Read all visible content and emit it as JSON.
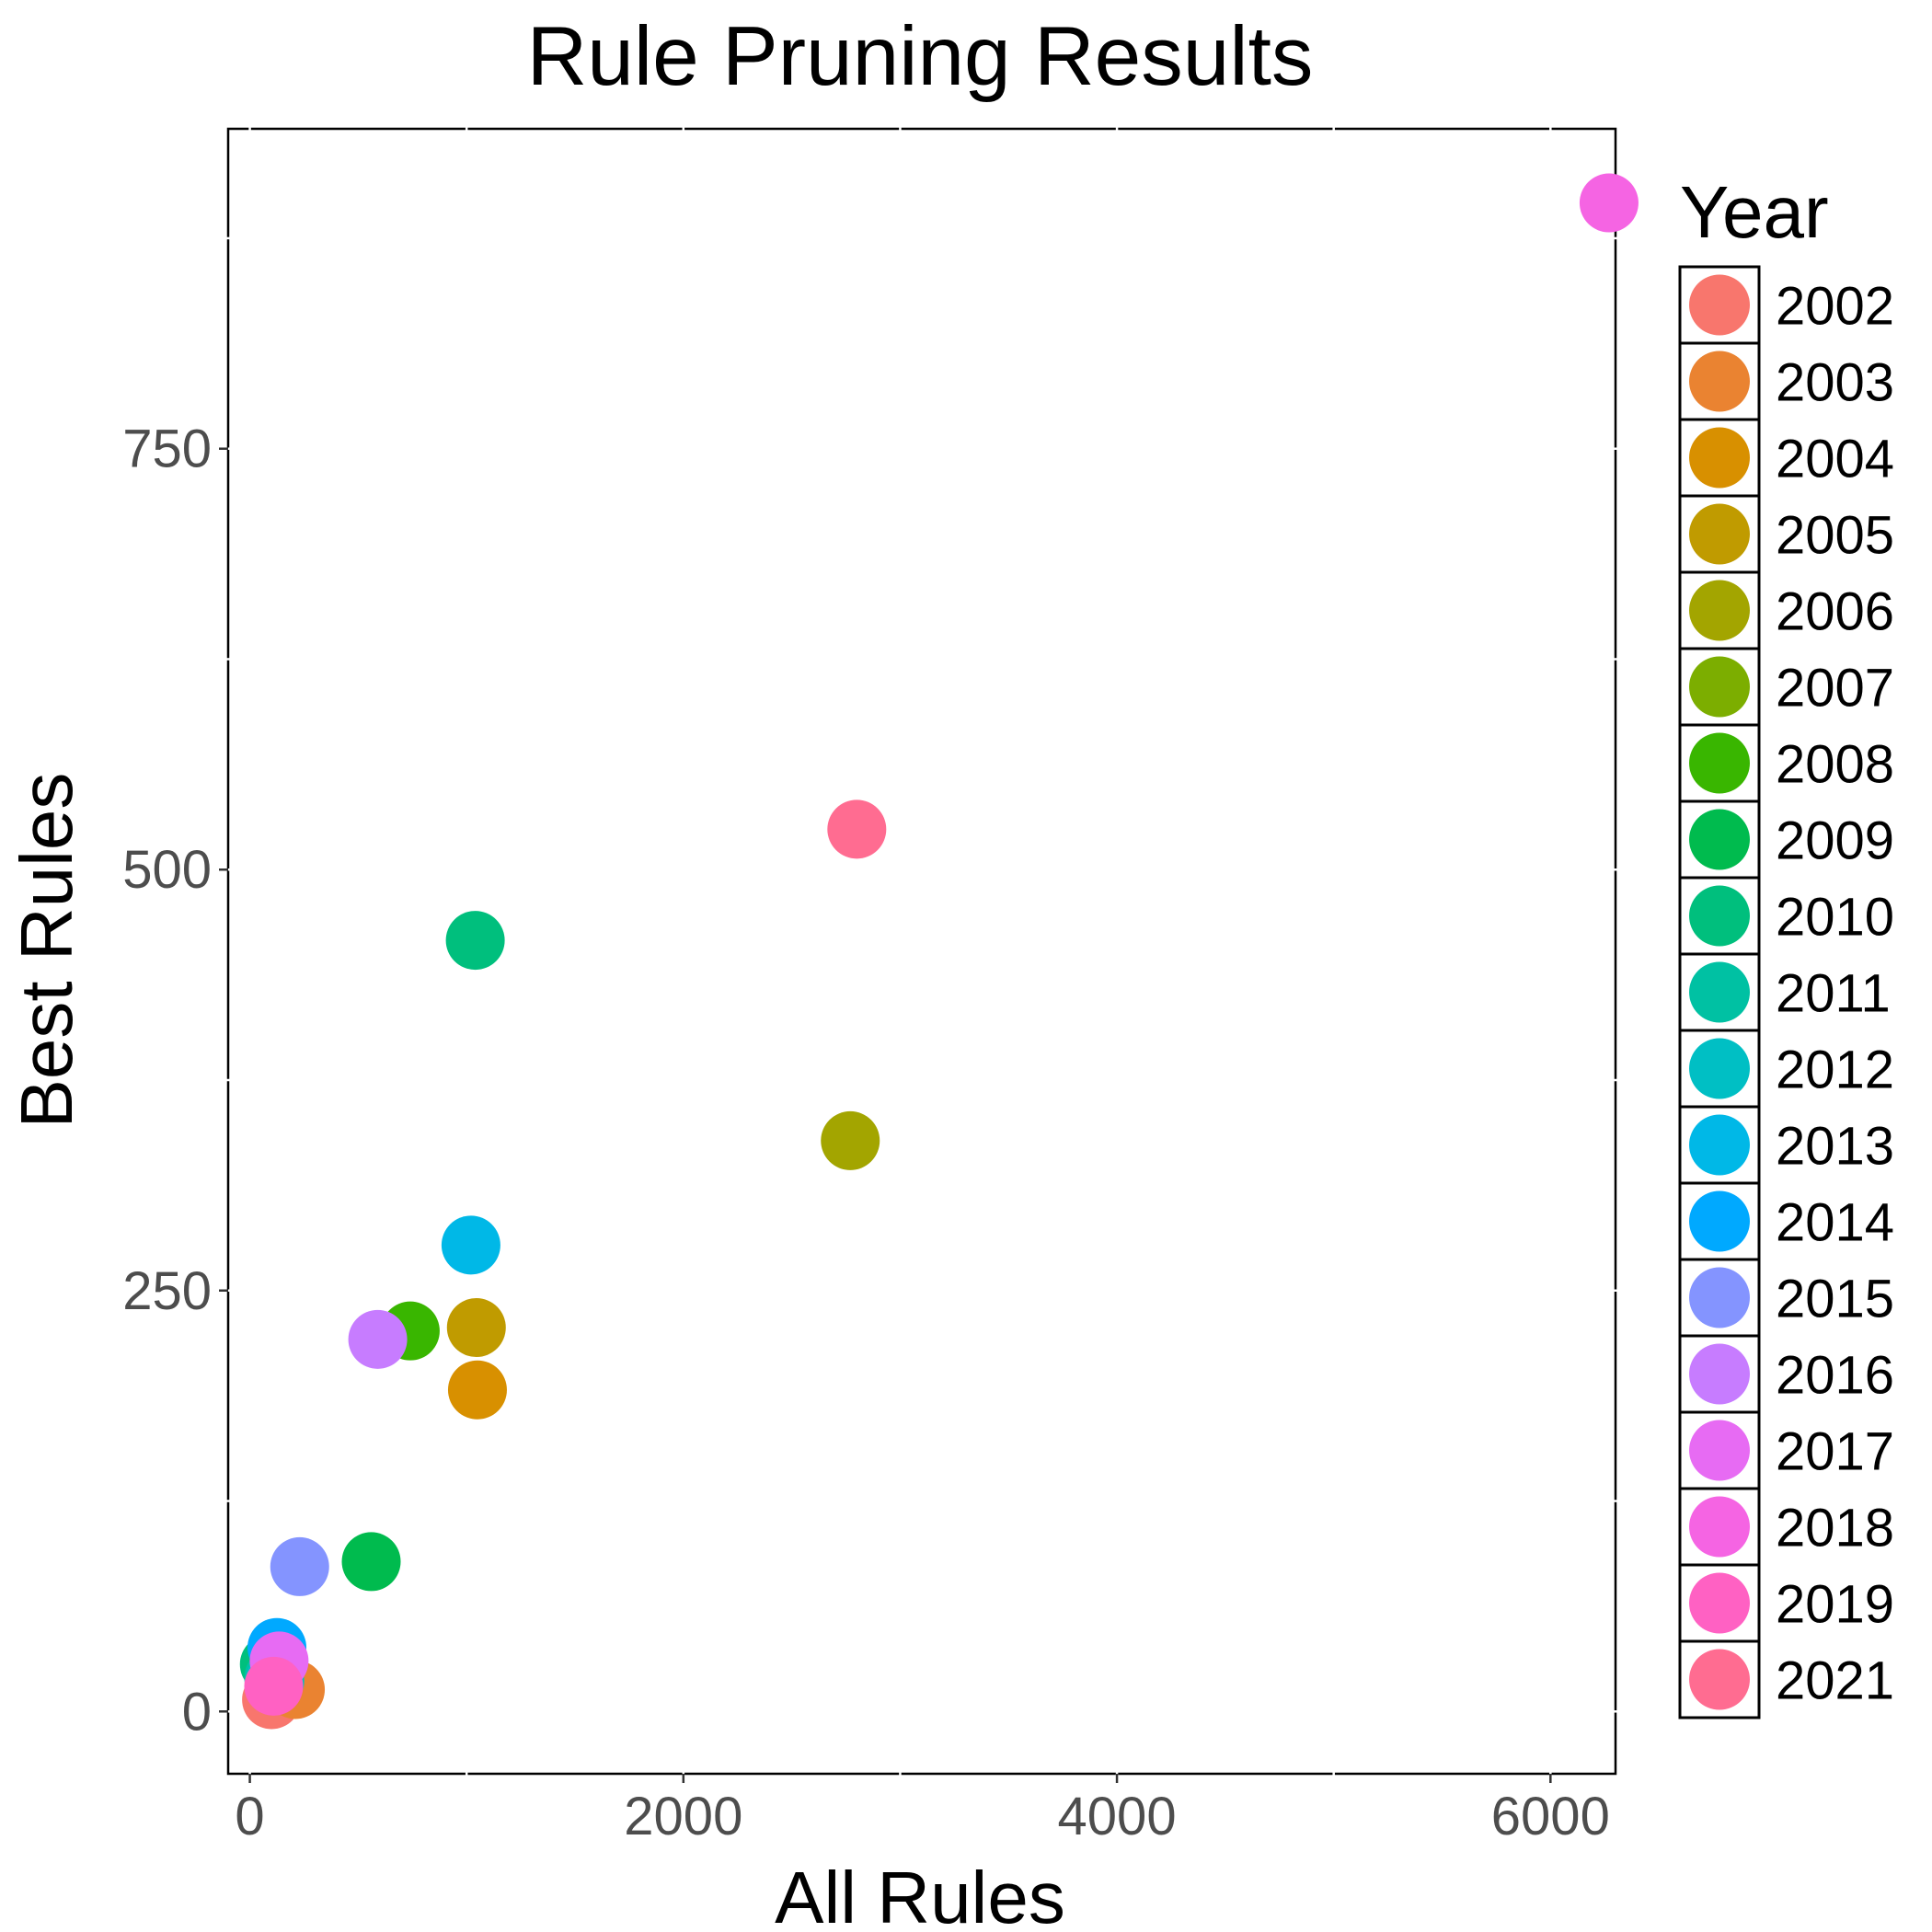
{
  "chart_data": {
    "type": "scatter",
    "title": "Rule Pruning Results",
    "xlabel": "All Rules",
    "ylabel": "Best Rules",
    "xlim": [
      -100,
      6300
    ],
    "ylim": [
      -37,
      940
    ],
    "x_ticks": [
      0,
      2000,
      4000,
      6000
    ],
    "y_ticks": [
      0,
      250,
      500,
      750
    ],
    "grid": false,
    "legend": {
      "title": "Year",
      "placement": "right"
    },
    "series": [
      {
        "name": "2002",
        "color": "#F8766D",
        "points": [
          {
            "x": 100,
            "y": 7
          }
        ]
      },
      {
        "name": "2003",
        "color": "#EA8331",
        "points": [
          {
            "x": 210,
            "y": 13
          }
        ]
      },
      {
        "name": "2004",
        "color": "#D89000",
        "points": [
          {
            "x": 1050,
            "y": 191
          }
        ]
      },
      {
        "name": "2005",
        "color": "#C09B00",
        "points": [
          {
            "x": 1045,
            "y": 228
          }
        ]
      },
      {
        "name": "2006",
        "color": "#A3A500",
        "points": [
          {
            "x": 2770,
            "y": 339
          }
        ]
      },
      {
        "name": "2007",
        "color": "#7CAE00",
        "points": []
      },
      {
        "name": "2008",
        "color": "#39B600",
        "points": [
          {
            "x": 740,
            "y": 226
          }
        ]
      },
      {
        "name": "2009",
        "color": "#00BB4E",
        "points": [
          {
            "x": 560,
            "y": 89
          }
        ]
      },
      {
        "name": "2010",
        "color": "#00BF7D",
        "points": [
          {
            "x": 1040,
            "y": 458
          },
          {
            "x": 90,
            "y": 28
          }
        ]
      },
      {
        "name": "2011",
        "color": "#00C1A3",
        "points": [
          {
            "x": 110,
            "y": 20
          }
        ]
      },
      {
        "name": "2012",
        "color": "#00BFC4",
        "points": [
          {
            "x": 115,
            "y": 18
          }
        ]
      },
      {
        "name": "2013",
        "color": "#00B8E7",
        "points": [
          {
            "x": 1020,
            "y": 277
          }
        ]
      },
      {
        "name": "2014",
        "color": "#00A9FF",
        "points": [
          {
            "x": 125,
            "y": 38
          }
        ]
      },
      {
        "name": "2015",
        "color": "#8494FF",
        "points": [
          {
            "x": 230,
            "y": 86
          }
        ]
      },
      {
        "name": "2016",
        "color": "#C77CFF",
        "points": [
          {
            "x": 590,
            "y": 221
          }
        ]
      },
      {
        "name": "2017",
        "color": "#E76BF3",
        "points": [
          {
            "x": 135,
            "y": 30
          }
        ]
      },
      {
        "name": "2018",
        "color": "#F564E3",
        "points": [
          {
            "x": 6270,
            "y": 896
          }
        ]
      },
      {
        "name": "2019",
        "color": "#FF61C3",
        "points": [
          {
            "x": 110,
            "y": 15
          }
        ]
      },
      {
        "name": "2021",
        "color": "#FF6C91",
        "points": [
          {
            "x": 2800,
            "y": 524
          }
        ]
      }
    ]
  }
}
